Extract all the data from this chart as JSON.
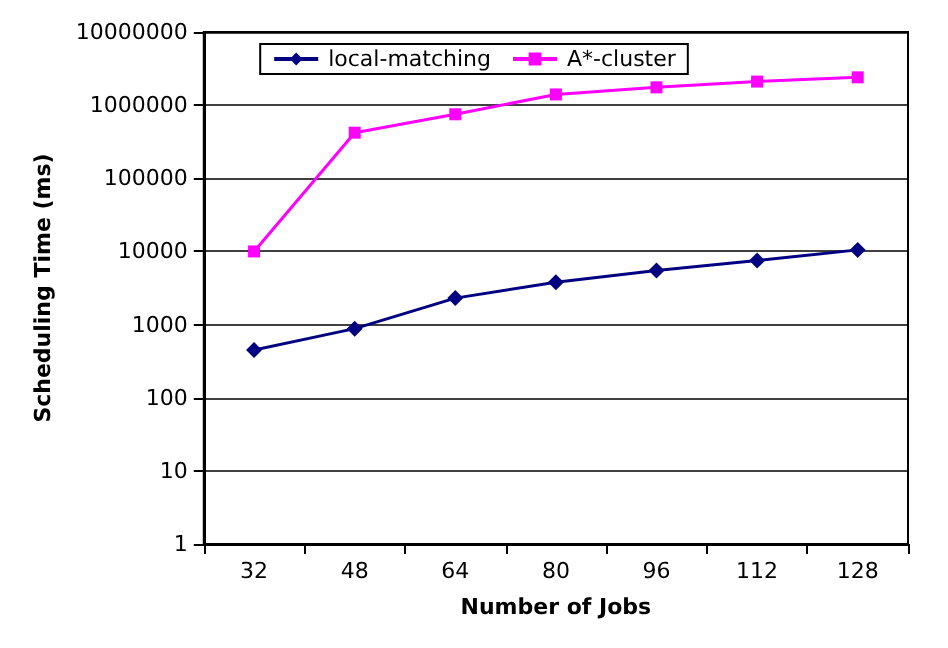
{
  "chart_data": {
    "type": "line",
    "xlabel": "Number of Jobs",
    "ylabel": "Scheduling Time (ms)",
    "categories": [
      "32",
      "48",
      "64",
      "80",
      "96",
      "112",
      "128"
    ],
    "series": [
      {
        "name": "local-matching",
        "color": "#000080",
        "marker": "diamond",
        "values": [
          450,
          880,
          2300,
          3800,
          5500,
          7500,
          10500
        ]
      },
      {
        "name": "A*-cluster",
        "color": "#ff00ff",
        "marker": "square",
        "values": [
          10000,
          420000,
          750000,
          1400000,
          1750000,
          2100000,
          2400000
        ]
      }
    ],
    "log": "y",
    "ylim": [
      1,
      10000000
    ],
    "yticks": [
      1,
      10,
      100,
      1000,
      10000,
      100000,
      1000000,
      10000000
    ],
    "grid": "y",
    "legend": "top"
  }
}
